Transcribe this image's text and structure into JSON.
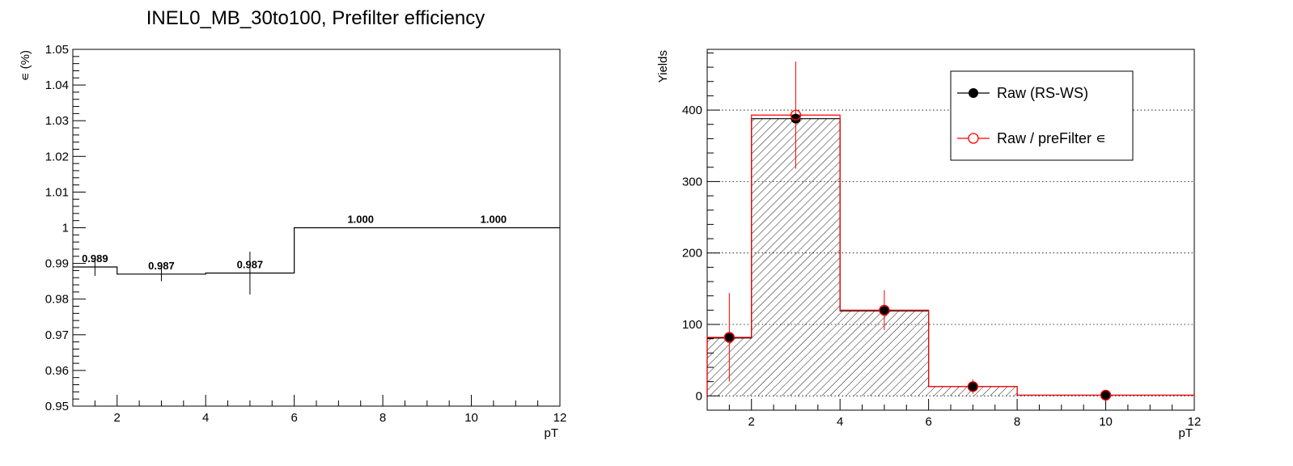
{
  "chart_data": [
    {
      "type": "step",
      "title": "INEL0_MB_30to100, Prefilter efficiency",
      "xlabel": "pT",
      "ylabel": "∊ (%)",
      "xlim": [
        1,
        12
      ],
      "ylim": [
        0.95,
        1.05
      ],
      "x_ticks": [
        2,
        4,
        6,
        8,
        10,
        12
      ],
      "x_tick_labels": [
        "2",
        "4",
        "6",
        "8",
        "10",
        "12"
      ],
      "y_ticks": [
        0.95,
        0.96,
        0.97,
        0.98,
        0.99,
        1.0,
        1.01,
        1.02,
        1.03,
        1.04,
        1.05
      ],
      "y_tick_labels": [
        "0.95",
        "0.96",
        "0.97",
        "0.98",
        "0.99",
        "1",
        "1.01",
        "1.02",
        "1.03",
        "1.04",
        "1.05"
      ],
      "grid": false,
      "bins": [
        {
          "x_low": 1,
          "x_high": 2,
          "x": 1.5,
          "value": 0.989,
          "error": 0.0025,
          "label": "0.989"
        },
        {
          "x_low": 2,
          "x_high": 4,
          "x": 3,
          "value": 0.987,
          "error": 0.002,
          "label": "0.987"
        },
        {
          "x_low": 4,
          "x_high": 6,
          "x": 5,
          "value": 0.9873,
          "error": 0.006,
          "label": "0.987"
        },
        {
          "x_low": 6,
          "x_high": 9,
          "x": 7.5,
          "value": 1.0,
          "error": 0,
          "label": "1.000"
        },
        {
          "x_low": 9,
          "x_high": 12,
          "x": 10.5,
          "value": 1.0,
          "error": 0,
          "label": "1.000"
        }
      ]
    },
    {
      "type": "histogram",
      "title": "",
      "xlabel": "pT",
      "ylabel": "Yields",
      "xlim": [
        1,
        12
      ],
      "ylim": [
        -20,
        485
      ],
      "x_ticks": [
        2,
        4,
        6,
        8,
        10,
        12
      ],
      "x_tick_labels": [
        "2",
        "4",
        "6",
        "8",
        "10",
        "12"
      ],
      "y_ticks": [
        0,
        100,
        200,
        300,
        400
      ],
      "y_tick_labels": [
        "0",
        "100",
        "200",
        "300",
        "400"
      ],
      "grid": "horizontal dotted",
      "legend": "top-right",
      "bin_edges": [
        1,
        2,
        4,
        6,
        8,
        12
      ],
      "series": [
        {
          "name": "Raw (RS-WS)",
          "color": "#000000",
          "marker": "filled-circle",
          "fill": "hatched",
          "x": [
            1.5,
            3,
            5,
            7,
            10
          ],
          "values": [
            81,
            388,
            119,
            13,
            1
          ],
          "errors": [
            0,
            0,
            0,
            0,
            0
          ]
        },
        {
          "name": "Raw / preFilter ∊",
          "color": "#ff0000",
          "marker": "open-circle",
          "fill": "none",
          "x": [
            1.5,
            3,
            5,
            7,
            10
          ],
          "values": [
            82,
            393,
            120,
            13,
            1
          ],
          "errors": [
            62,
            75,
            28,
            10,
            2
          ]
        }
      ]
    }
  ]
}
